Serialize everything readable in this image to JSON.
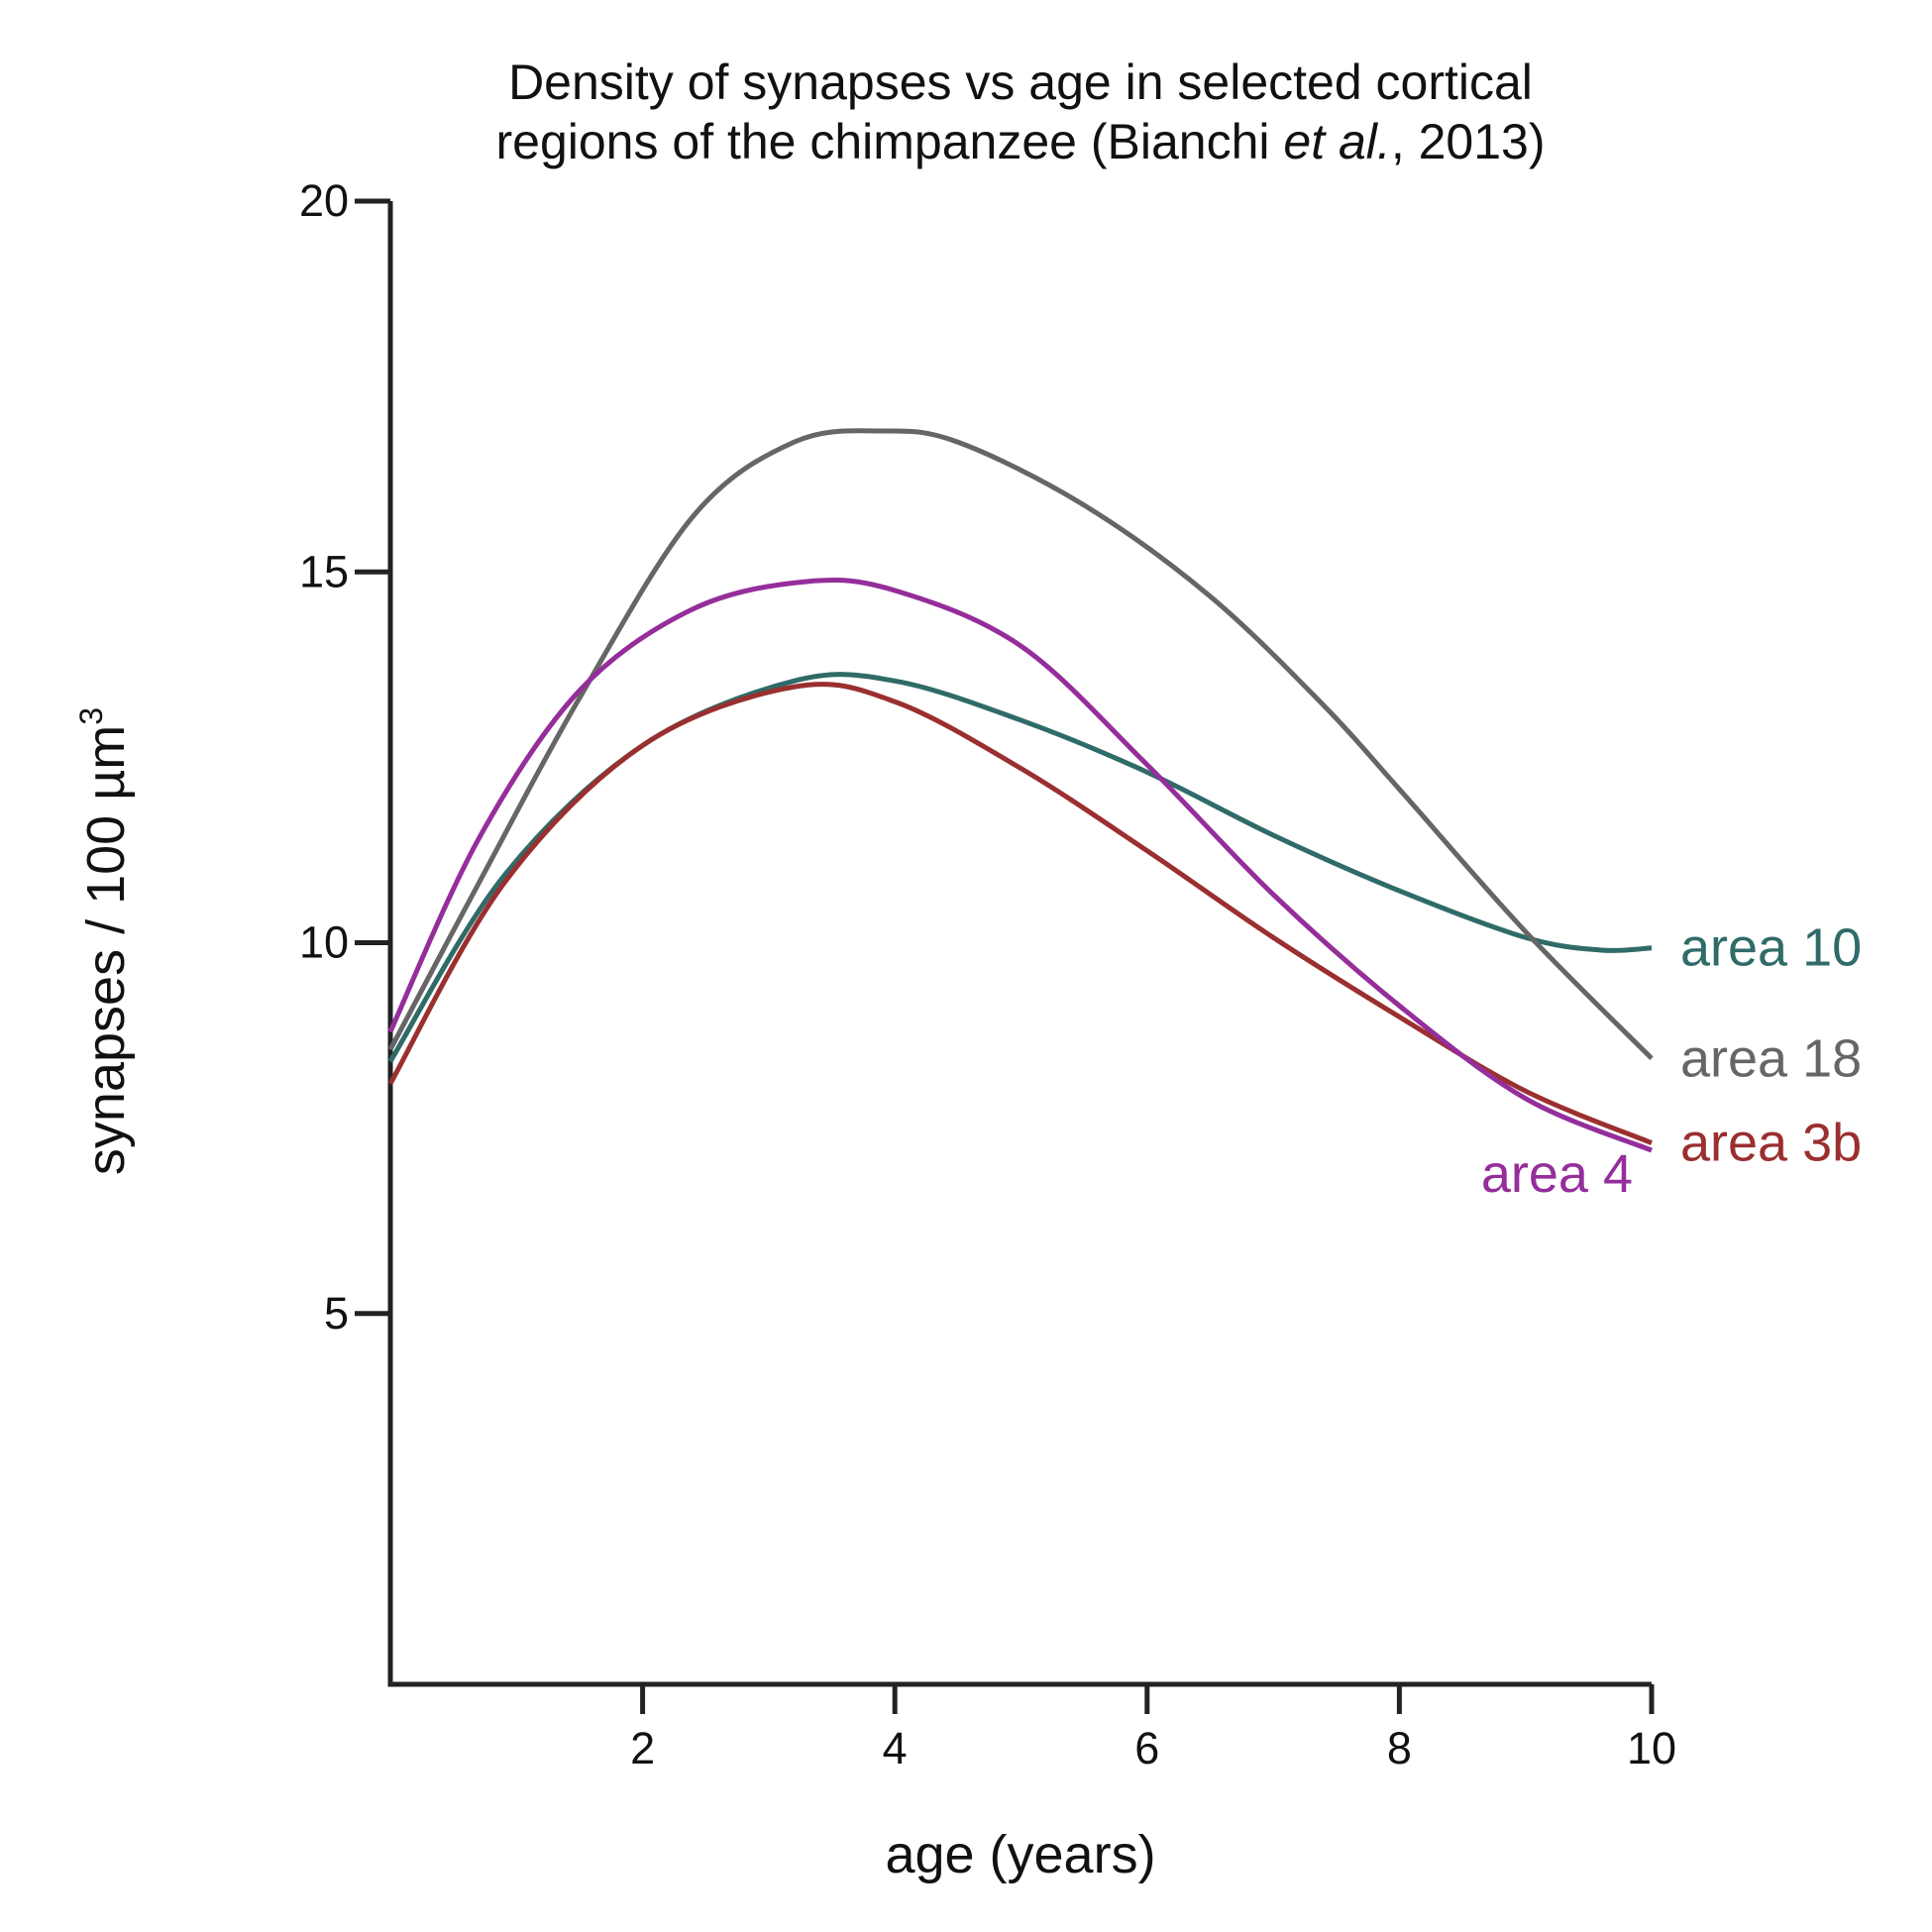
{
  "chart_data": {
    "type": "line",
    "title": {
      "line1": "Density of synapses vs age in selected cortical",
      "line2_pre": "regions of the chimpanzee (Bianchi ",
      "line2_italic": "et al.",
      "line2_post": ", 2013)"
    },
    "xlabel": "age (years)",
    "ylabel": {
      "text": "synapses / 100 µm",
      "superscript": "3"
    },
    "xlim": [
      0,
      10
    ],
    "ylim": [
      0,
      20
    ],
    "xticks": [
      "2",
      "4",
      "6",
      "8",
      "10"
    ],
    "yticks": [
      "5",
      "10",
      "15",
      "20"
    ],
    "grid": false,
    "legend": "inline labels at line ends (right)",
    "series": [
      {
        "name": "area 10",
        "color": "#2f6b68",
        "x": [
          0,
          0.9,
          2,
          3.2,
          4,
          5,
          6,
          7,
          8,
          9,
          9.6,
          10
        ],
        "y": [
          8.4,
          10.9,
          12.66,
          13.53,
          13.53,
          13.0,
          12.3,
          11.45,
          10.7,
          10.07,
          9.9,
          9.93
        ]
      },
      {
        "name": "area 18",
        "color": "#666666",
        "x": [
          0,
          0.7,
          1.5,
          2.4,
          3.2,
          3.9,
          4.5,
          5.5,
          6.5,
          7.4,
          8,
          9,
          10
        ],
        "y": [
          8.56,
          10.8,
          13.3,
          15.75,
          16.75,
          16.9,
          16.75,
          15.9,
          14.67,
          13.2,
          12.07,
          10.15,
          8.44
        ]
      },
      {
        "name": "area 3b",
        "color": "#9b2f2f",
        "x": [
          0,
          0.9,
          2,
          3.2,
          4,
          5,
          6,
          7,
          8,
          9,
          10
        ],
        "y": [
          8.1,
          10.8,
          12.66,
          13.45,
          13.25,
          12.35,
          11.24,
          10.07,
          9.0,
          8.0,
          7.3
        ]
      },
      {
        "name": "area 4",
        "color": "#952e9b",
        "x": [
          0,
          0.7,
          1.5,
          2.4,
          3.3,
          4,
          5,
          6,
          7,
          8,
          9,
          10
        ],
        "y": [
          8.8,
          11.4,
          13.4,
          14.5,
          14.87,
          14.75,
          14.0,
          12.4,
          10.65,
          9.15,
          7.9,
          7.2
        ]
      }
    ]
  }
}
